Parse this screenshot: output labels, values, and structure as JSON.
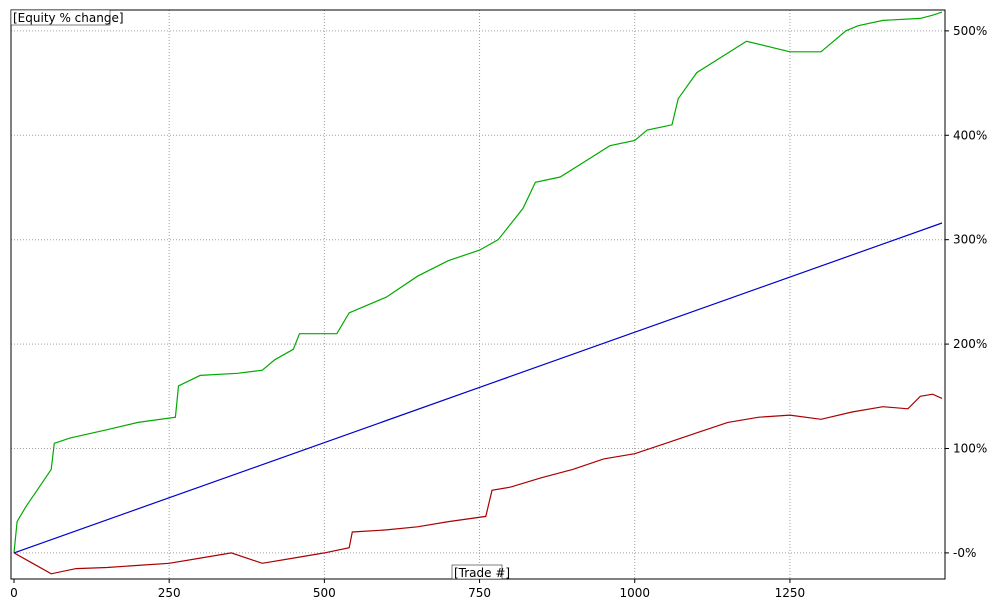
{
  "chart_data": {
    "type": "line",
    "title": "[Equity % change]",
    "xlabel": "[Trade #]",
    "ylabel": "",
    "xlim": [
      0,
      1495
    ],
    "ylim": [
      -25,
      520
    ],
    "x_ticks": [
      0,
      250,
      500,
      750,
      1000,
      1250
    ],
    "x_tick_labels": [
      "0",
      "250",
      "500",
      "750",
      "1000",
      "1250"
    ],
    "y_ticks": [
      0,
      100,
      200,
      300,
      400,
      500
    ],
    "y_tick_labels": [
      "-0%",
      "100%",
      "200%",
      "300%",
      "400%",
      "500%"
    ],
    "grid": true,
    "legend": "none",
    "series": [
      {
        "color": "#00aa00",
        "x": [
          0,
          5,
          20,
          35,
          60,
          65,
          90,
          150,
          200,
          260,
          265,
          300,
          360,
          400,
          420,
          450,
          460,
          520,
          540,
          600,
          650,
          700,
          750,
          780,
          820,
          840,
          880,
          920,
          960,
          1000,
          1020,
          1060,
          1070,
          1100,
          1180,
          1250,
          1300,
          1340,
          1360,
          1400,
          1460,
          1480,
          1495
        ],
        "y": [
          0,
          30,
          45,
          58,
          80,
          105,
          110,
          118,
          125,
          130,
          160,
          170,
          172,
          175,
          185,
          195,
          210,
          210,
          230,
          245,
          265,
          280,
          290,
          300,
          330,
          355,
          360,
          375,
          390,
          395,
          405,
          410,
          435,
          460,
          490,
          480,
          480,
          500,
          505,
          510,
          512,
          515,
          518
        ]
      },
      {
        "color": "#0000cc",
        "x": [
          0,
          1495
        ],
        "y": [
          0,
          316
        ]
      },
      {
        "color": "#aa0000",
        "x": [
          0,
          30,
          60,
          100,
          150,
          200,
          250,
          300,
          350,
          400,
          450,
          500,
          540,
          545,
          600,
          650,
          700,
          760,
          770,
          800,
          850,
          900,
          950,
          1000,
          1050,
          1100,
          1150,
          1200,
          1250,
          1300,
          1350,
          1400,
          1440,
          1460,
          1480,
          1495
        ],
        "y": [
          0,
          -10,
          -20,
          -15,
          -14,
          -12,
          -10,
          -5,
          0,
          -10,
          -5,
          0,
          5,
          20,
          22,
          25,
          30,
          35,
          60,
          63,
          72,
          80,
          90,
          95,
          105,
          115,
          125,
          130,
          132,
          128,
          135,
          140,
          138,
          150,
          152,
          148
        ]
      }
    ]
  }
}
